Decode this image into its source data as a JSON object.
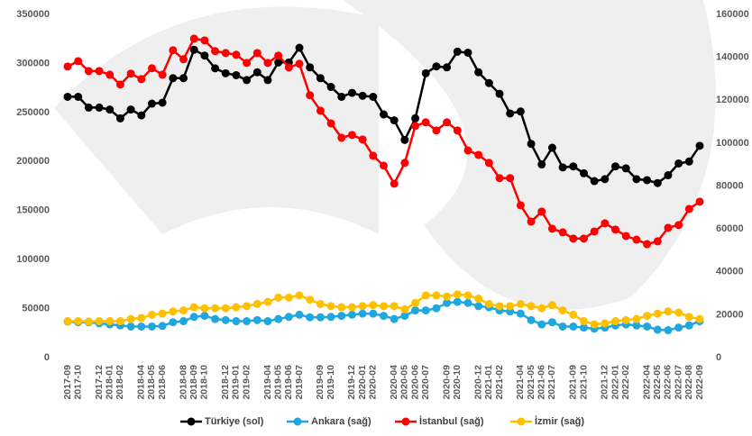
{
  "chart_data": {
    "type": "line",
    "categories": [
      "2017-09",
      "2017-10",
      null,
      "2017-12",
      "2018-01",
      "2018-02",
      null,
      "2018-04",
      "2018-05",
      "2018-06",
      null,
      "2018-08",
      "2018-09",
      "2018-10",
      null,
      "2018-12",
      "2019-01",
      "2019-02",
      null,
      "2019-04",
      "2019-05",
      "2019-06",
      "2019-07",
      null,
      "2019-09",
      "2019-10",
      null,
      "2019-12",
      "2020-01",
      "2020-02",
      null,
      "2020-04",
      "2020-05",
      "2020-06",
      "2020-07",
      null,
      "2020-09",
      "2020-10",
      null,
      "2020-12",
      "2021-01",
      "2021-02",
      null,
      "2021-04",
      "2021-05",
      "2021-06",
      "2021-07",
      null,
      "2021-09",
      "2021-10",
      null,
      "2021-12",
      "2022-01",
      "2022-02",
      null,
      "2022-04",
      "2022-05",
      "2022-06",
      "2022-07",
      "2022-08",
      "2022-09"
    ],
    "series": [
      {
        "name": "Türkiye (sol)",
        "color": "#000000",
        "axis": "y",
        "values": [
          266000,
          266000,
          255000,
          255000,
          253000,
          244000,
          253000,
          247000,
          259000,
          260000,
          285000,
          285000,
          314000,
          308000,
          295000,
          290000,
          288000,
          283000,
          291000,
          283000,
          301000,
          301000,
          316000,
          296000,
          285000,
          276000,
          266000,
          270000,
          267000,
          266000,
          248000,
          242000,
          222000,
          244000,
          290000,
          297000,
          296000,
          312000,
          311000,
          291000,
          280000,
          269000,
          249000,
          251000,
          218000,
          197000,
          214000,
          194000,
          195000,
          188000,
          180000,
          182000,
          195000,
          193000,
          182000,
          181000,
          178000,
          186000,
          198000,
          200000,
          216000
        ]
      },
      {
        "name": "Ankara (sağ)",
        "color": "#1fa7e0",
        "axis": "y2",
        "values": [
          16800,
          16500,
          16500,
          16000,
          15500,
          15000,
          14500,
          14500,
          14500,
          14800,
          16500,
          17000,
          19000,
          19500,
          18000,
          17500,
          17000,
          17000,
          17500,
          17000,
          18000,
          19000,
          20000,
          18800,
          18800,
          19000,
          19500,
          20000,
          20500,
          20500,
          19500,
          18000,
          19500,
          22000,
          22000,
          23000,
          25500,
          26000,
          25500,
          24000,
          23500,
          22000,
          21500,
          20500,
          17500,
          15500,
          16500,
          14500,
          14500,
          14000,
          13500,
          14000,
          15000,
          15500,
          15000,
          14500,
          13000,
          12800,
          14000,
          15000,
          17000
        ]
      },
      {
        "name": "İstanbul (sağ)",
        "color": "#ff0000",
        "axis": "y2",
        "values": [
          135700,
          138200,
          133600,
          133600,
          131900,
          127300,
          132400,
          129800,
          134900,
          131900,
          143300,
          139100,
          148700,
          147900,
          142900,
          142000,
          141200,
          137400,
          142000,
          137400,
          140800,
          135300,
          137000,
          122300,
          115100,
          109200,
          102500,
          103800,
          101700,
          94100,
          89500,
          81100,
          90800,
          108000,
          109700,
          105900,
          109700,
          105900,
          96600,
          94500,
          90800,
          83700,
          83700,
          71000,
          63400,
          68100,
          60100,
          58400,
          55500,
          55500,
          58800,
          62600,
          59700,
          56700,
          55000,
          52900,
          54200,
          60500,
          61800,
          69300,
          72700
        ]
      },
      {
        "name": "İzmir (sağ)",
        "color": "#ffc000",
        "axis": "y2",
        "values": [
          17000,
          17000,
          16800,
          17000,
          17000,
          17000,
          18000,
          18500,
          20000,
          20500,
          21500,
          22000,
          23500,
          23000,
          23000,
          23000,
          23500,
          24000,
          25000,
          26000,
          28000,
          28000,
          29000,
          27000,
          25000,
          24000,
          23500,
          23500,
          24000,
          24500,
          24000,
          24000,
          22500,
          25500,
          29000,
          29000,
          28500,
          29500,
          29000,
          27500,
          25000,
          24000,
          24000,
          25000,
          24000,
          23000,
          24500,
          22000,
          20000,
          17000,
          15500,
          16000,
          17000,
          17500,
          18000,
          19500,
          20500,
          21500,
          21000,
          19000,
          18000
        ]
      }
    ],
    "ylim": [
      0,
      350000
    ],
    "yticks": [
      0,
      50000,
      100000,
      150000,
      200000,
      250000,
      300000,
      350000
    ],
    "y2lim": [
      0,
      160000
    ],
    "y2ticks": [
      0,
      20000,
      40000,
      60000,
      80000,
      100000,
      120000,
      140000,
      160000
    ],
    "legend": "bottom"
  }
}
